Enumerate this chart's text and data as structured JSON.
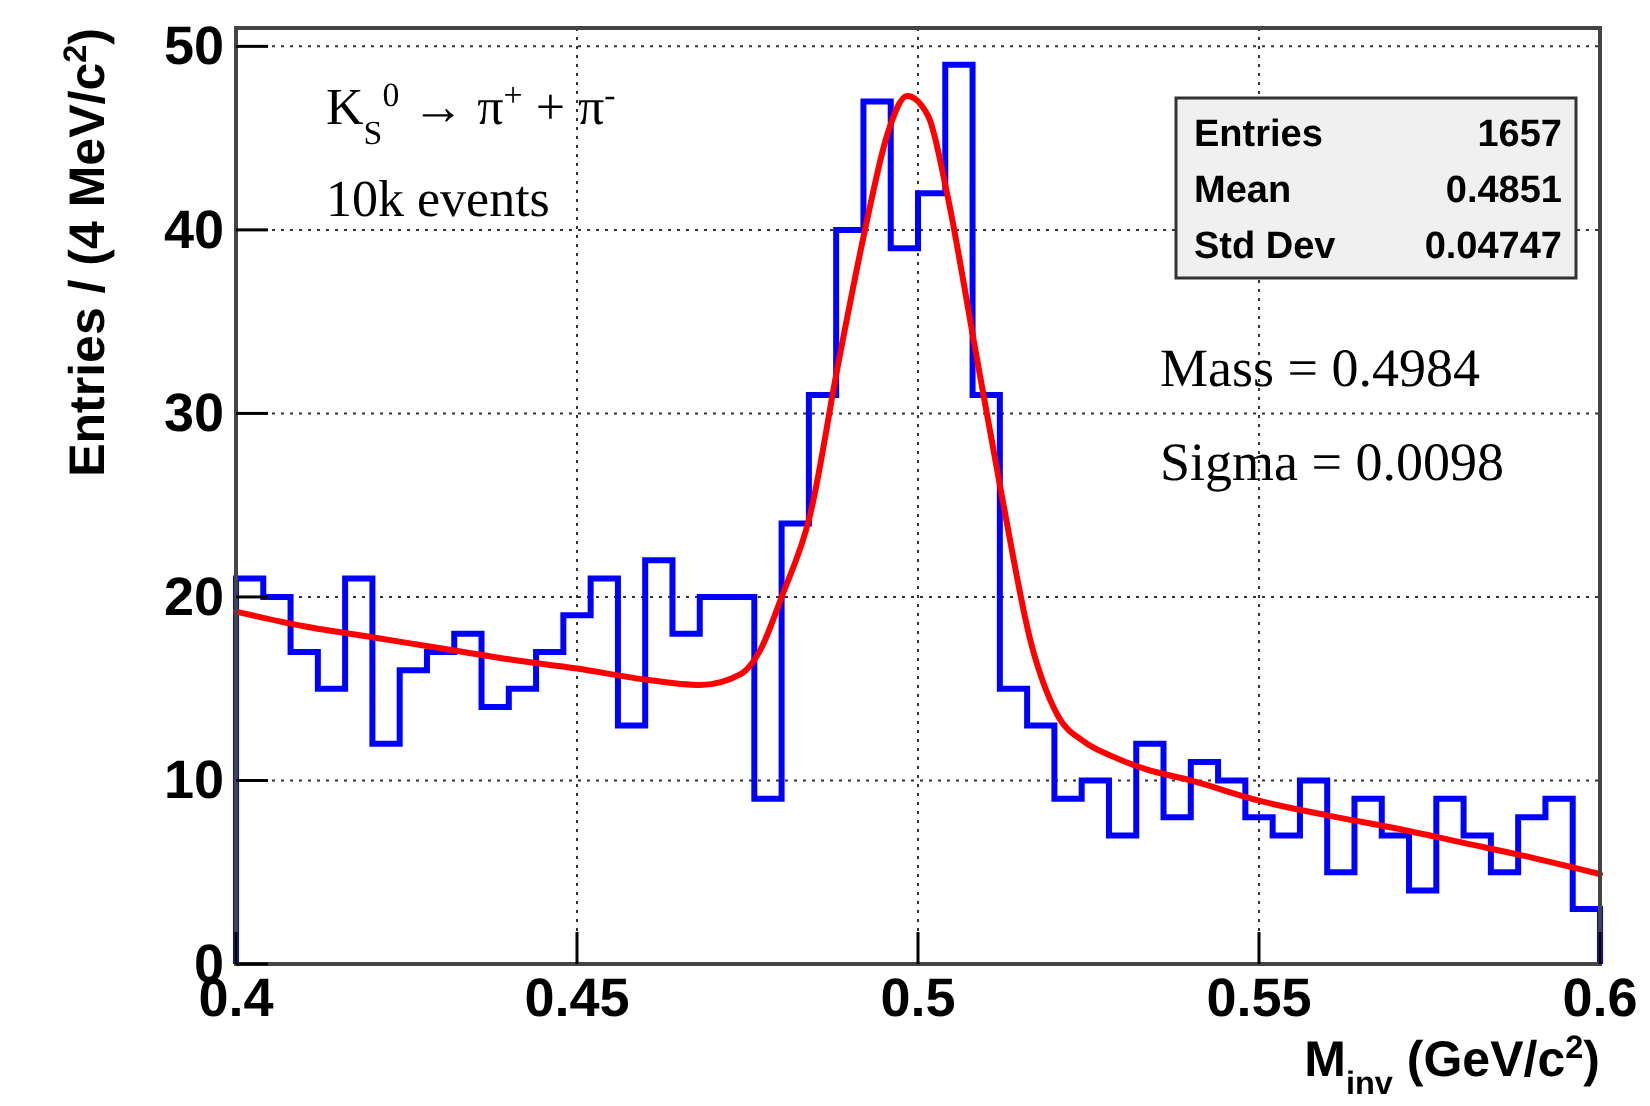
{
  "chart_data": {
    "type": "histogram",
    "xlabel": "M$_{inv}$ (GeV/c$^{2}$)",
    "ylabel": "Entries / (4 MeV/c$^{2}$)",
    "annotations": [
      "K$_{S}$$^{0}$ → π$^{+}$ + π$^{-}$",
      "10k events",
      "Entries 1657",
      "Mean 0.4851",
      "Std Dev 0.04747",
      "Mass = 0.4984",
      "Sigma = 0.0098"
    ],
    "bins": [
      0.4,
      0.404,
      0.408,
      0.412,
      0.416,
      0.42,
      0.424,
      0.428,
      0.432,
      0.436,
      0.44,
      0.444,
      0.448,
      0.452,
      0.456,
      0.46,
      0.464,
      0.468,
      0.472,
      0.476,
      0.48,
      0.484,
      0.488,
      0.492,
      0.496,
      0.5,
      0.504,
      0.508,
      0.512,
      0.516,
      0.52,
      0.524,
      0.528,
      0.532,
      0.536,
      0.54,
      0.544,
      0.548,
      0.552,
      0.556,
      0.56,
      0.564,
      0.568,
      0.572,
      0.576,
      0.58,
      0.584,
      0.588,
      0.592,
      0.596,
      0.6
    ],
    "series": [
      {
        "color": "#0000ff",
        "values": [
          21,
          20,
          17,
          15,
          21,
          12,
          16,
          17,
          18,
          14,
          15,
          17,
          19,
          21,
          13,
          22,
          18,
          20,
          20,
          9,
          24,
          31,
          40,
          47,
          39,
          42,
          49,
          31,
          15,
          13,
          9,
          10,
          7,
          12,
          8,
          11,
          10,
          8,
          7,
          10,
          5,
          9,
          7,
          4,
          9,
          7,
          5,
          8,
          9,
          3
        ]
      },
      {
        "type": "line",
        "color": "#ff0000",
        "x": [
          0.4,
          0.41,
          0.42,
          0.43,
          0.44,
          0.45,
          0.46,
          0.468,
          0.474,
          0.477,
          0.48,
          0.4842,
          0.4883,
          0.4924,
          0.4955,
          0.4984,
          0.5015,
          0.5042,
          0.5083,
          0.5124,
          0.5165,
          0.5204,
          0.5244,
          0.5286,
          0.5335,
          0.54,
          0.55,
          0.56,
          0.57,
          0.58,
          0.59,
          0.6
        ],
        "values": [
          19.2,
          18.4,
          17.8,
          17.2,
          16.6,
          16.1,
          15.5,
          15.2,
          15.8,
          17.2,
          20,
          24.5,
          32.7,
          40.3,
          45.2,
          47.3,
          46.2,
          42.1,
          33.7,
          25.3,
          17.6,
          13.6,
          12.1,
          11.3,
          10.6,
          10,
          8.9,
          8.1,
          7.4,
          6.6,
          5.8,
          4.9
        ]
      }
    ],
    "xlim": [
      0.4,
      0.6
    ],
    "ylim": [
      0,
      51
    ],
    "xticks": [
      0.4,
      0.45,
      0.5,
      0.55,
      0.6
    ],
    "yticks": [
      0,
      10,
      20,
      30,
      40,
      50
    ],
    "grid": true,
    "line_style": "solid",
    "marker": "none"
  }
}
